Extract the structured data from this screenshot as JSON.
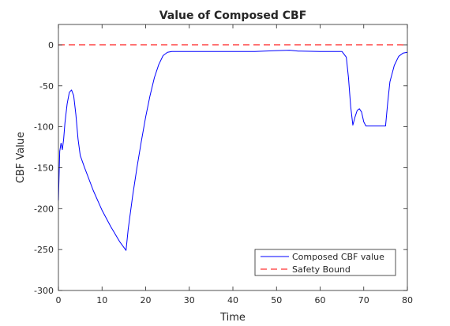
{
  "chart_data": {
    "type": "line",
    "title": "Value of Composed CBF",
    "xlabel": "Time",
    "ylabel": "CBF Value",
    "xlim": [
      0,
      80
    ],
    "ylim": [
      -300,
      25
    ],
    "xticks": [
      0,
      10,
      20,
      30,
      40,
      50,
      60,
      70,
      80
    ],
    "yticks": [
      0,
      -50,
      -100,
      -150,
      -200,
      -250,
      -300
    ],
    "grid": false,
    "legend_position": "bottom-right",
    "series": [
      {
        "name": "Composed CBF value",
        "color": "#0000ff",
        "style": "solid",
        "x": [
          0,
          0.3,
          0.6,
          0.9,
          1.2,
          1.5,
          2.0,
          2.5,
          3.0,
          3.5,
          4.0,
          4.5,
          5.0,
          6,
          8,
          10,
          12,
          14,
          15.5,
          16,
          17,
          18,
          19,
          20,
          21,
          22,
          23,
          24,
          25,
          26,
          27,
          28,
          30,
          35,
          40,
          45,
          50,
          53,
          55,
          60,
          65,
          66,
          66.5,
          67,
          67.5,
          68,
          68.5,
          69,
          69.5,
          70,
          70.5,
          71,
          72,
          73,
          74,
          75,
          75.5,
          76,
          77,
          78,
          79,
          80
        ],
        "y": [
          -190,
          -130,
          -120,
          -128,
          -115,
          -95,
          -72,
          -58,
          -55,
          -62,
          -85,
          -115,
          -135,
          -150,
          -178,
          -202,
          -222,
          -240,
          -251,
          -225,
          -185,
          -150,
          -118,
          -88,
          -62,
          -40,
          -24,
          -13,
          -9,
          -8,
          -8,
          -8,
          -8,
          -8,
          -8,
          -8,
          -7,
          -6.5,
          -7.5,
          -8,
          -8,
          -15,
          -40,
          -75,
          -98,
          -88,
          -80,
          -78,
          -82,
          -94,
          -99,
          -99,
          -99,
          -99,
          -99,
          -99,
          -70,
          -45,
          -25,
          -14,
          -10,
          -9
        ]
      },
      {
        "name": "Safety Bound",
        "color": "#ff0000",
        "style": "dashed",
        "x": [
          0,
          80
        ],
        "y": [
          0,
          0
        ]
      }
    ]
  }
}
